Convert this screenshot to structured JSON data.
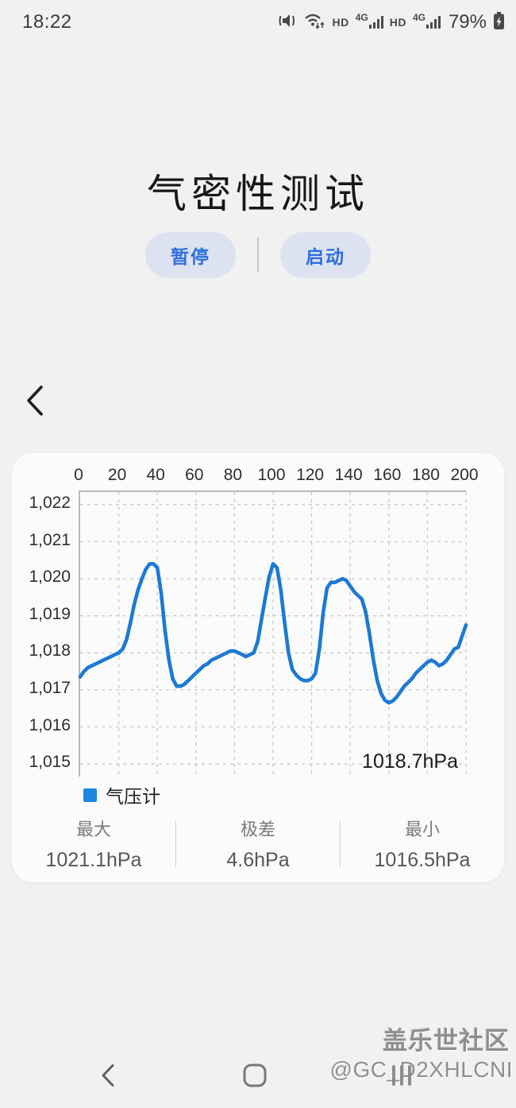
{
  "status_bar": {
    "time": "18:22",
    "hd": "HD",
    "net": "4G",
    "battery_percent": "79%"
  },
  "header": {
    "title": "气密性测试",
    "pause_label": "暂停",
    "start_label": "启动"
  },
  "chart_data": {
    "type": "line",
    "title": "",
    "xlabel": "",
    "ylabel": "hPa",
    "x_range": [
      0,
      200
    ],
    "y_render_range": [
      1014.66,
      1022.34
    ],
    "grid": "dashed",
    "legend_position": "bottom-left",
    "line_color": "#1d7ad3",
    "x_ticks": [
      0,
      20,
      40,
      60,
      80,
      100,
      120,
      140,
      160,
      180,
      200
    ],
    "y_ticks": [
      {
        "v": 1022,
        "label": "1,022"
      },
      {
        "v": 1021,
        "label": "1,021"
      },
      {
        "v": 1020,
        "label": "1,020"
      },
      {
        "v": 1019,
        "label": "1,019"
      },
      {
        "v": 1018,
        "label": "1,018"
      },
      {
        "v": 1017,
        "label": "1,017"
      },
      {
        "v": 1016,
        "label": "1,016"
      },
      {
        "v": 1015,
        "label": "1,015"
      }
    ],
    "legend": [
      {
        "label": "气压计",
        "color": "#1c86e2"
      }
    ],
    "current_value_label": "1018.7hPa",
    "series": [
      {
        "name": "气压计",
        "x_start": 0,
        "x_step": 2,
        "values": [
          1017.35,
          1017.5,
          1017.6,
          1017.65,
          1017.7,
          1017.75,
          1017.8,
          1017.85,
          1017.9,
          1017.95,
          1018.0,
          1018.1,
          1018.35,
          1018.8,
          1019.3,
          1019.7,
          1020.0,
          1020.25,
          1020.4,
          1020.4,
          1020.3,
          1019.6,
          1018.6,
          1017.8,
          1017.3,
          1017.1,
          1017.1,
          1017.15,
          1017.25,
          1017.35,
          1017.45,
          1017.55,
          1017.65,
          1017.7,
          1017.8,
          1017.85,
          1017.9,
          1017.95,
          1018.0,
          1018.05,
          1018.05,
          1018.0,
          1017.95,
          1017.9,
          1017.95,
          1018.0,
          1018.3,
          1018.9,
          1019.5,
          1020.05,
          1020.4,
          1020.3,
          1019.7,
          1018.8,
          1018.0,
          1017.55,
          1017.4,
          1017.3,
          1017.25,
          1017.25,
          1017.3,
          1017.45,
          1018.1,
          1019.1,
          1019.75,
          1019.9,
          1019.9,
          1019.95,
          1020.0,
          1019.95,
          1019.8,
          1019.65,
          1019.55,
          1019.45,
          1019.1,
          1018.5,
          1017.8,
          1017.25,
          1016.9,
          1016.72,
          1016.65,
          1016.7,
          1016.8,
          1016.95,
          1017.1,
          1017.2,
          1017.3,
          1017.45,
          1017.55,
          1017.65,
          1017.75,
          1017.8,
          1017.75,
          1017.65,
          1017.7,
          1017.8,
          1017.95,
          1018.1,
          1018.15,
          1018.45,
          1018.75
        ]
      }
    ]
  },
  "stats": {
    "items": [
      {
        "label": "最大",
        "value": "1021.1hPa"
      },
      {
        "label": "极差",
        "value": "4.6hPa"
      },
      {
        "label": "最小",
        "value": "1016.5hPa"
      }
    ]
  },
  "watermark": {
    "line1": "盖乐世社区",
    "line2": "@GC_D2XHLCNI"
  }
}
